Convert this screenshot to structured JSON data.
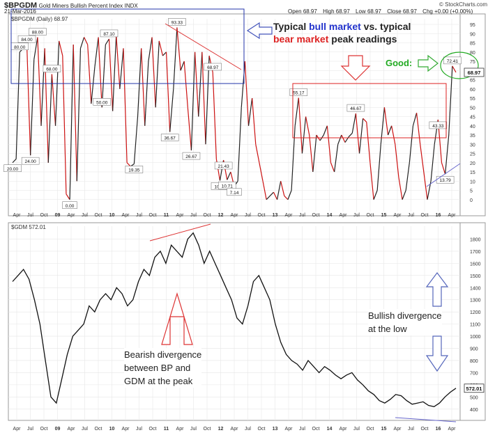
{
  "header": {
    "ticker": "$BPGDM",
    "name": "Gold Miners Bullish Percent Index",
    "exchange": "INDX",
    "date": "21-Mar-2016",
    "brand": "© StockCharts.com",
    "quote": [
      {
        "label": "Open",
        "value": "68.97"
      },
      {
        "label": "High",
        "value": "68.97"
      },
      {
        "label": "Low",
        "value": "68.97"
      },
      {
        "label": "Close",
        "value": "68.97"
      },
      {
        "label": "Chg",
        "value": "+0.00 (+0.00%)"
      }
    ]
  },
  "annotations": {
    "typical_bull_1": "Typical ",
    "typical_bull_2": "bull market",
    "typical_bull_3": " vs. typical",
    "typical_bear_1": "bear market",
    "typical_bear_2": " peak readings",
    "good": "Good:",
    "bearish_1": "Bearish divergence",
    "bearish_2": "between BP and",
    "bearish_3": "GDM at the peak",
    "bullish_1": "Bullish divergence",
    "bullish_2": "at the low"
  },
  "colors": {
    "up": "#222222",
    "down": "#cc1111",
    "bull_box": "#2233aa",
    "bear_box": "#dd2222",
    "good": "#22aa22",
    "trend": "#6666cc",
    "grid": "#e6e6e6"
  },
  "chart_data": [
    {
      "type": "line",
      "title": "$BPGDM (Daily) 68.97",
      "ylim": [
        -5,
        95
      ],
      "y_ticks": [
        0,
        5,
        10,
        15,
        20,
        25,
        30,
        35,
        40,
        45,
        50,
        55,
        60,
        65,
        70,
        75,
        80,
        85,
        90,
        95
      ],
      "x_ticks": [
        "Apr",
        "Jul",
        "Oct",
        "09",
        "Apr",
        "Jul",
        "Oct",
        "10",
        "Apr",
        "Jul",
        "Oct",
        "11",
        "Apr",
        "Jul",
        "Oct",
        "12",
        "Apr",
        "Jul",
        "Oct",
        "13",
        "Apr",
        "Jul",
        "Oct",
        "14",
        "Apr",
        "Jul",
        "Oct",
        "15",
        "Apr",
        "Jul",
        "Oct",
        "16",
        "Apr"
      ],
      "last_value_label": "68.97",
      "series": [
        {
          "values": [
            20.0,
            22,
            80,
            82,
            84,
            24,
            76,
            88,
            40,
            82,
            20,
            68,
            40,
            86,
            78,
            3,
            0,
            84,
            10,
            82,
            88,
            84,
            52,
            72,
            88,
            50,
            84,
            87.1,
            48,
            89,
            60,
            82,
            20,
            18,
            19.35,
            45,
            82,
            40,
            75,
            88,
            50,
            86,
            78,
            80,
            36.67,
            60,
            93.33,
            70,
            75,
            50,
            26.67,
            80,
            45,
            80,
            30,
            78,
            68.97,
            22,
            10.34,
            21.43,
            10.71,
            15,
            7.14,
            10,
            50,
            75,
            40,
            55,
            30,
            20,
            10,
            0,
            2,
            4,
            0,
            10,
            2,
            0,
            5,
            40,
            55.17,
            25,
            45,
            35,
            15,
            35,
            32,
            35,
            40,
            20,
            15,
            30,
            35,
            31,
            34,
            36,
            46.67,
            25,
            44,
            42,
            20,
            0,
            5,
            30,
            50.0,
            35,
            40,
            30,
            12,
            0,
            5,
            20,
            40,
            47,
            30,
            15,
            0.0,
            10,
            30,
            43.33,
            20,
            13.79,
            35,
            72.41,
            68.97
          ]
        }
      ],
      "labeled_values": [
        {
          "label": "20.00",
          "value": 20.0
        },
        {
          "label": "24.00",
          "value": 24.0
        },
        {
          "label": "88.00",
          "value": 88.0
        },
        {
          "label": "68.00",
          "value": 68.0
        },
        {
          "label": "84.00",
          "value": 84.0
        },
        {
          "label": "87.10",
          "value": 87.1
        },
        {
          "label": "19.35",
          "value": 19.35
        },
        {
          "label": "93.33",
          "value": 93.33
        },
        {
          "label": "36.67",
          "value": 36.67
        },
        {
          "label": "80.00",
          "value": 80.0
        },
        {
          "label": "26.67",
          "value": 26.67
        },
        {
          "label": "68.97",
          "value": 68.97
        },
        {
          "label": "10.34",
          "value": 10.34
        },
        {
          "label": "21.43",
          "value": 21.43
        },
        {
          "label": "10.71",
          "value": 10.71
        },
        {
          "label": "7.14",
          "value": 7.14
        },
        {
          "label": "55.17",
          "value": 55.17
        },
        {
          "label": "46.67",
          "value": 46.67
        },
        {
          "label": "50.00",
          "value": 50.0
        },
        {
          "label": "43.33",
          "value": 43.33
        },
        {
          "label": "0.00",
          "value": 0.0
        },
        {
          "label": "13.79",
          "value": 13.79
        },
        {
          "label": "72.41",
          "value": 72.41
        }
      ]
    },
    {
      "type": "line",
      "title": "$GDM 572.01",
      "ylim": [
        330,
        1860
      ],
      "y_ticks": [
        400,
        500,
        600,
        700,
        800,
        900,
        1000,
        1100,
        1200,
        1300,
        1400,
        1500,
        1600,
        1700,
        1800
      ],
      "x_ticks": [
        "Apr",
        "Jul",
        "Oct",
        "09",
        "Apr",
        "Jul",
        "Oct",
        "10",
        "Apr",
        "Jul",
        "Oct",
        "11",
        "Apr",
        "Jul",
        "Oct",
        "12",
        "Apr",
        "Jul",
        "Oct",
        "13",
        "Apr",
        "Jul",
        "Oct",
        "14",
        "Apr",
        "Jul",
        "Oct",
        "15",
        "Apr",
        "Jul",
        "Oct",
        "16",
        "Apr"
      ],
      "last_value_label": "572.01",
      "series": [
        {
          "values": [
            1450,
            1500,
            1550,
            1470,
            1300,
            1100,
            800,
            500,
            450,
            650,
            850,
            1000,
            1050,
            1100,
            1250,
            1200,
            1300,
            1350,
            1300,
            1400,
            1350,
            1250,
            1300,
            1450,
            1550,
            1500,
            1650,
            1700,
            1600,
            1750,
            1700,
            1650,
            1800,
            1850,
            1750,
            1600,
            1700,
            1600,
            1500,
            1400,
            1300,
            1150,
            1100,
            1250,
            1450,
            1500,
            1400,
            1300,
            1100,
            950,
            850,
            800,
            770,
            720,
            800,
            750,
            700,
            750,
            720,
            680,
            650,
            680,
            700,
            640,
            600,
            550,
            520,
            470,
            450,
            480,
            520,
            510,
            470,
            440,
            450,
            460,
            430,
            420,
            450,
            500,
            540,
            572
          ]
        }
      ]
    }
  ]
}
